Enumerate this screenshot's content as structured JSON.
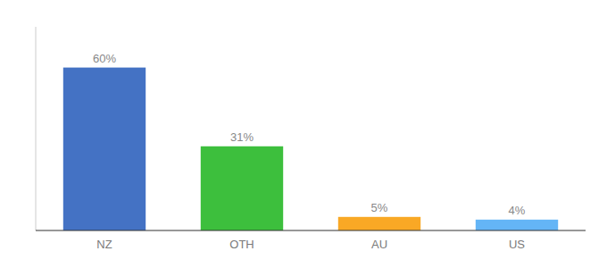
{
  "chart_data": {
    "type": "bar",
    "categories": [
      "NZ",
      "OTH",
      "AU",
      "US"
    ],
    "values": [
      60,
      31,
      5,
      4
    ],
    "value_labels": [
      "60%",
      "31%",
      "5%",
      "4%"
    ],
    "data_labels": true,
    "colors": [
      "#4472c4",
      "#3dbf3d",
      "#f9a825",
      "#64b5f6"
    ],
    "ylim": [
      0,
      75
    ],
    "grid": false,
    "tick_labels": "x"
  }
}
